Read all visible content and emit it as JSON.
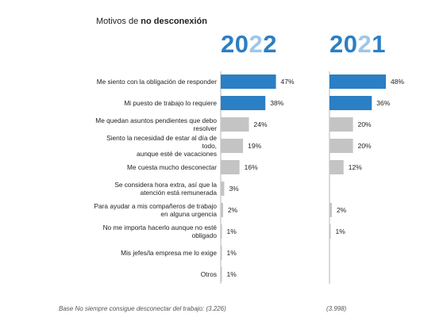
{
  "title_prefix": "Motivos de ",
  "title_bold": "no desconexión",
  "year_a": {
    "p1": "20",
    "p2": "2",
    "p3": "2"
  },
  "year_b": {
    "p1": "20",
    "p2": "2",
    "p3": "1"
  },
  "footer_left": "Base No siempre consigue desconectar del trabajo: (3.226)",
  "footer_right": "(3.998)",
  "colors": {
    "highlight": "#2b7fc4",
    "normal": "#c4c4c4",
    "axis": "#b4b4b4"
  },
  "chart_data": {
    "type": "bar",
    "orientation": "horizontal",
    "categories": [
      [
        "Me siento con la obligación de responder"
      ],
      [
        "Mi puesto de trabajo lo requiere"
      ],
      [
        "Me quedan asuntos pendientes que debo",
        "resolver"
      ],
      [
        "Siento la necesidad de estar al día de",
        "todo,",
        "aunque esté de vacaciones"
      ],
      [
        "Me cuesta mucho desconectar"
      ],
      [
        "Se considera hora extra, así que la",
        "atención está remunerada"
      ],
      [
        "Para ayudar a mis compañeros de trabajo",
        "en alguna urgencia"
      ],
      [
        "No me importa hacerlo aunque no esté",
        "obligado"
      ],
      [
        "Mis jefes/la empresa me lo exige"
      ],
      [
        "Otros"
      ]
    ],
    "series": [
      {
        "name": "2022",
        "values": [
          47,
          38,
          24,
          19,
          16,
          3,
          2,
          1,
          1,
          1
        ],
        "labels": [
          "47%",
          "38%",
          "24%",
          "19%",
          "16%",
          "3%",
          "2%",
          "1%",
          "1%",
          "1%"
        ],
        "highlight": [
          true,
          true,
          false,
          false,
          false,
          false,
          false,
          false,
          false,
          false
        ]
      },
      {
        "name": "2021",
        "values": [
          48,
          36,
          20,
          20,
          12,
          null,
          2,
          1,
          null,
          null
        ],
        "labels": [
          "48%",
          "36%",
          "20%",
          "20%",
          "12%",
          "",
          "2%",
          "1%",
          "",
          ""
        ],
        "highlight": [
          true,
          true,
          false,
          false,
          false,
          false,
          false,
          false,
          false,
          false
        ]
      }
    ],
    "xlim": [
      0,
      100
    ]
  }
}
